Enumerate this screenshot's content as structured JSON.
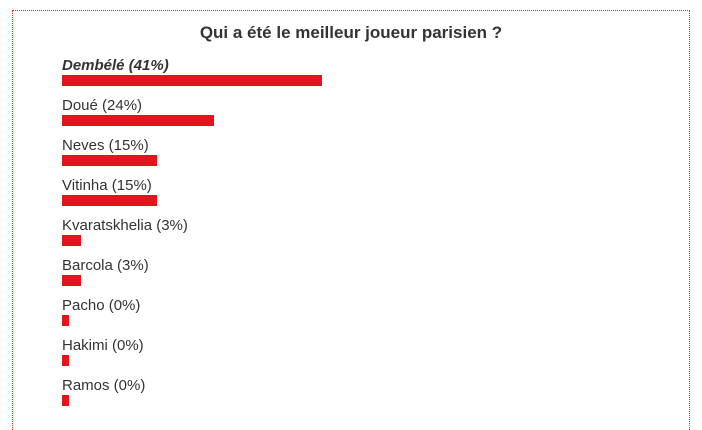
{
  "poll": {
    "title": "Qui a été le meilleur joueur parisien ?",
    "bar_color": "#e2141d",
    "options": [
      {
        "label": "Dembélé (41%)",
        "percent": 41,
        "winner": true
      },
      {
        "label": "Doué (24%)",
        "percent": 24,
        "winner": false
      },
      {
        "label": "Neves (15%)",
        "percent": 15,
        "winner": false
      },
      {
        "label": "Vitinha (15%)",
        "percent": 15,
        "winner": false
      },
      {
        "label": "Kvaratskhelia (3%)",
        "percent": 3,
        "winner": false
      },
      {
        "label": "Barcola (3%)",
        "percent": 3,
        "winner": false
      },
      {
        "label": "Pacho (0%)",
        "percent": 0,
        "winner": false
      },
      {
        "label": "Hakimi (0%)",
        "percent": 0,
        "winner": false
      },
      {
        "label": "Ramos (0%)",
        "percent": 0,
        "winner": false
      }
    ]
  }
}
